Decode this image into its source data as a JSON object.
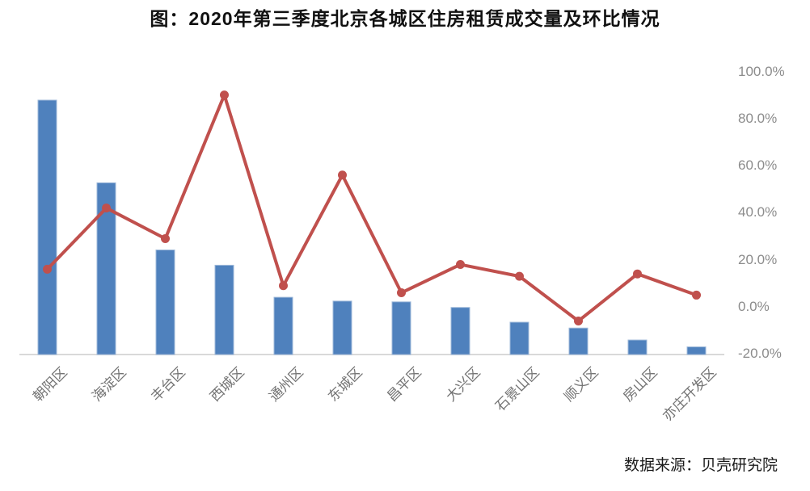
{
  "title": "图：2020年第三季度北京各城区住房租赁成交量及环比情况",
  "source": "数据来源：贝壳研究院",
  "chart_data": {
    "type": "bar",
    "subtype": "combo-bar-line-dual-axis",
    "title": "图：2020年第三季度北京各城区住房租赁成交量及环比情况",
    "categories": [
      "朝阳区",
      "海淀区",
      "丰台区",
      "西城区",
      "通州区",
      "东城区",
      "昌平区",
      "大兴区",
      "石景山区",
      "顺义区",
      "房山区",
      "亦庄开发区"
    ],
    "series": [
      {
        "name": "住房租赁成交量",
        "type": "bar",
        "axis": "left",
        "unit": "relative index, 朝阳区=100 (left value axis not shown in figure)",
        "values": [
          100,
          67.5,
          41.1,
          35.1,
          22.5,
          21.0,
          20.7,
          18.5,
          12.7,
          10.4,
          5.7,
          3.0
        ],
        "color": "#4F81BD"
      },
      {
        "name": "环比",
        "type": "line",
        "axis": "right",
        "unit": "%",
        "values": [
          16,
          42,
          29,
          90,
          9,
          56,
          6,
          18,
          13,
          -6,
          14,
          5
        ],
        "color": "#C0504D"
      }
    ],
    "right_axis": {
      "tick_labels": [
        "100.0%",
        "80.0%",
        "60.0%",
        "40.0%",
        "20.0%",
        "0.0%",
        "-20.0%"
      ],
      "max": 100,
      "min": -20,
      "step": 20
    },
    "left_axis": "hidden",
    "grid": false,
    "legend": "none",
    "axis_line_color": "#D9D9D9",
    "bar_edge_color": "#9DB8D9"
  }
}
